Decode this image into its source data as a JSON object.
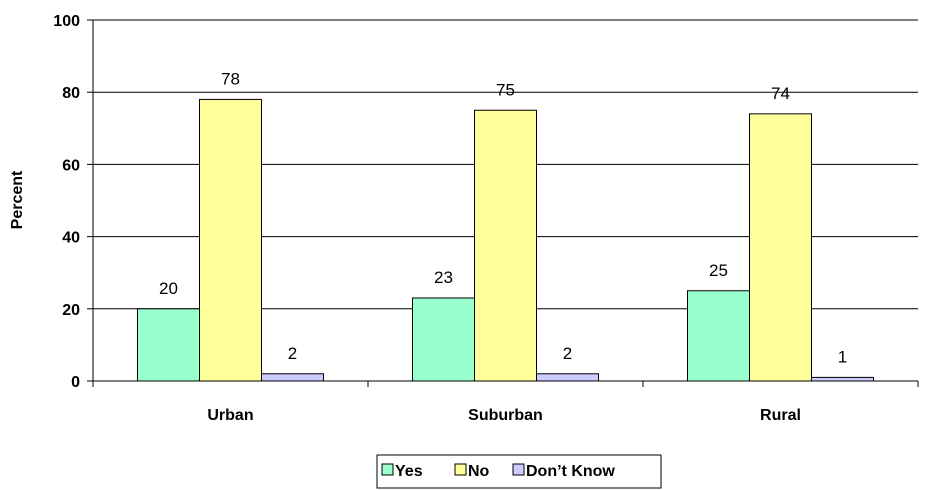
{
  "chart_data": {
    "type": "bar",
    "categories": [
      "Urban",
      "Suburban",
      "Rural"
    ],
    "series": [
      {
        "name": "Yes",
        "values": [
          20,
          23,
          25
        ],
        "color": "#99ffcc"
      },
      {
        "name": "No",
        "values": [
          78,
          75,
          74
        ],
        "color": "#ffff99"
      },
      {
        "name": "Don’t Know",
        "values": [
          2,
          2,
          1
        ],
        "color": "#ccccff"
      }
    ],
    "data_labels": [
      [
        "20",
        "23",
        "25"
      ],
      [
        "78",
        "75",
        "74"
      ],
      [
        "2",
        "2",
        "1"
      ]
    ],
    "ylabel": "Percent",
    "ylim": [
      0,
      100
    ],
    "yticks": [
      0,
      20,
      40,
      60,
      80,
      100
    ],
    "ytick_labels": [
      "0",
      "20",
      "40",
      "60",
      "80",
      "100"
    ],
    "grid": true,
    "legend_position": "bottom"
  }
}
